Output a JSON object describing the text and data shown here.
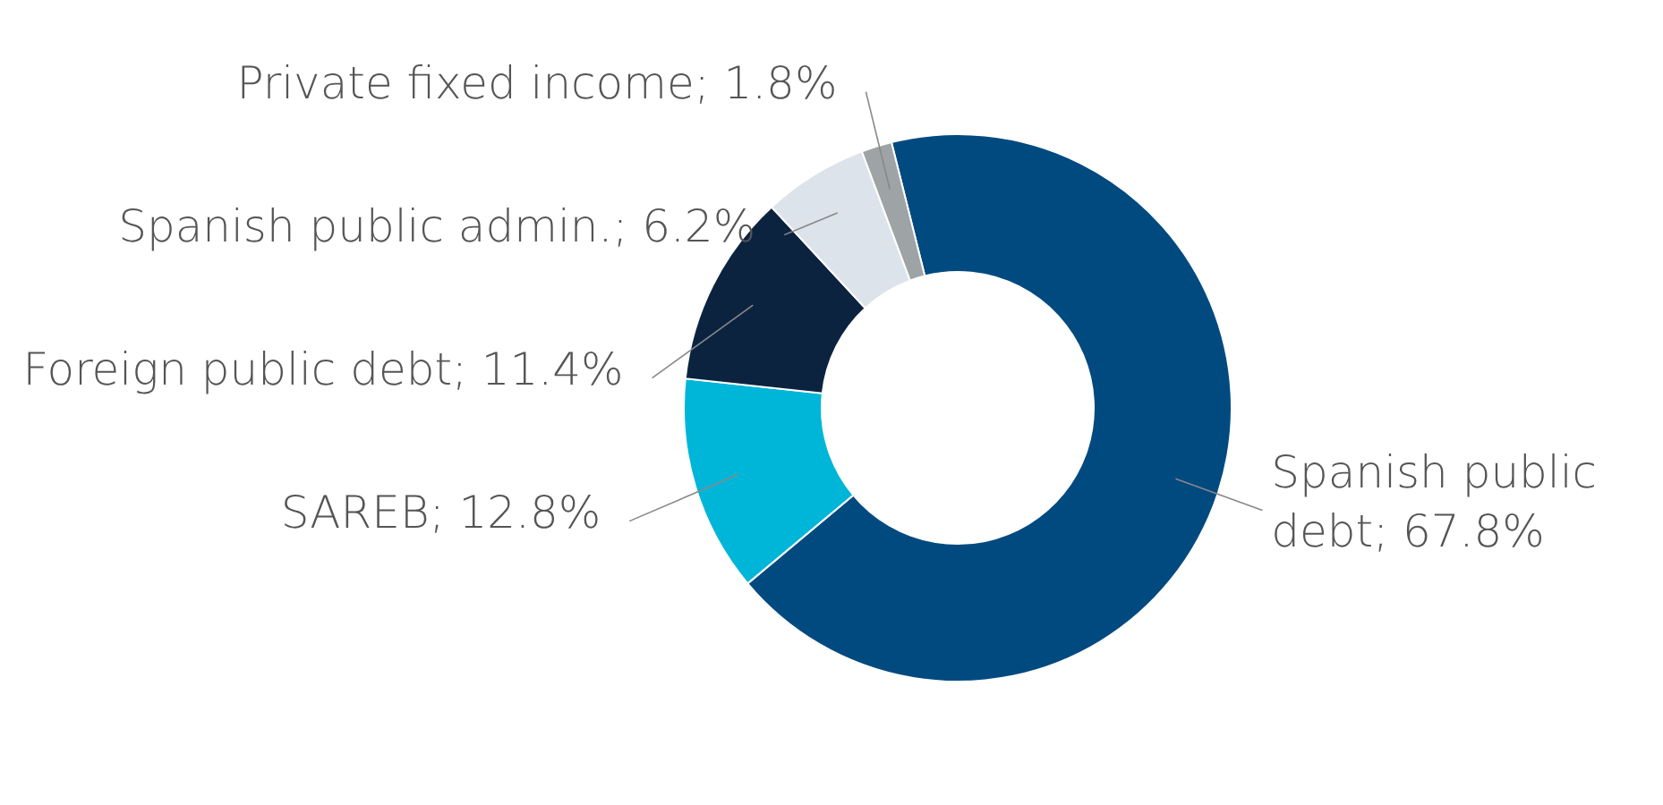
{
  "chart_data": {
    "type": "donut",
    "categories": [
      "Spanish public debt",
      "SAREB",
      "Foreign public debt",
      "Spanish public admin.",
      "Private fixed income"
    ],
    "values": [
      67.8,
      12.8,
      11.4,
      6.2,
      1.8
    ],
    "colors": [
      "#004a80",
      "#00b6d8",
      "#0c2340",
      "#dde3ea",
      "#9ea3a6"
    ],
    "value_labels": [
      "67.8%",
      "12.8%",
      "11.4%",
      "6.2%",
      "1.8%"
    ]
  }
}
